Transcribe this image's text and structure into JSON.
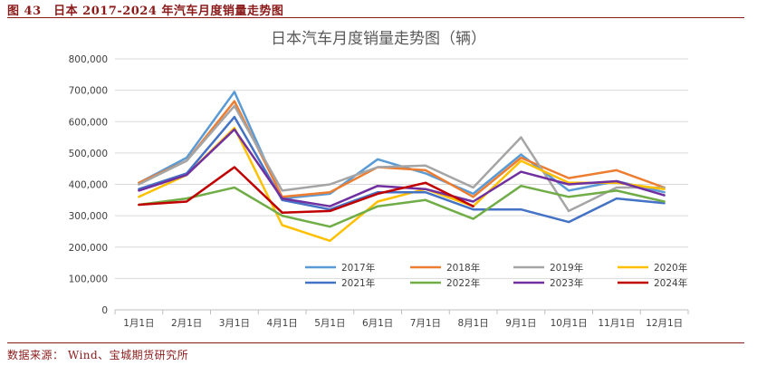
{
  "figure": {
    "label": "图 43　日本 2017-2024 年汽车月度销量走势图",
    "source": "数据来源：  Wind、宝城期货研究所"
  },
  "chart_data": {
    "type": "line",
    "title": "日本汽车月度销量走势图（辆）",
    "xlabel": "",
    "ylabel": "",
    "ylim": [
      0,
      800000
    ],
    "yticks": [
      0,
      100000,
      200000,
      300000,
      400000,
      500000,
      600000,
      700000,
      800000
    ],
    "ytick_labels": [
      "0",
      "100,000",
      "200,000",
      "300,000",
      "400,000",
      "500,000",
      "600,000",
      "700,000",
      "800,000"
    ],
    "grid": true,
    "legend_position": "bottom-right inside",
    "categories": [
      "1月1日",
      "2月1日",
      "3月1日",
      "4月1日",
      "5月1日",
      "6月1日",
      "7月1日",
      "8月1日",
      "9月1日",
      "10月1日",
      "11月1日",
      "12月1日"
    ],
    "series": [
      {
        "name": "2017年",
        "color": "#5b9bd5",
        "values": [
          405000,
          485000,
          695000,
          355000,
          370000,
          480000,
          435000,
          370000,
          495000,
          380000,
          410000,
          375000
        ]
      },
      {
        "name": "2018年",
        "color": "#ed7d31",
        "values": [
          405000,
          475000,
          665000,
          360000,
          375000,
          455000,
          445000,
          360000,
          485000,
          420000,
          445000,
          390000
        ]
      },
      {
        "name": "2019年",
        "color": "#a5a5a5",
        "values": [
          400000,
          475000,
          650000,
          380000,
          400000,
          455000,
          460000,
          390000,
          550000,
          315000,
          390000,
          390000
        ]
      },
      {
        "name": "2020年",
        "color": "#ffc000",
        "values": [
          360000,
          430000,
          580000,
          270000,
          220000,
          345000,
          385000,
          330000,
          475000,
          405000,
          405000,
          385000
        ]
      },
      {
        "name": "2021年",
        "color": "#4472c4",
        "values": [
          385000,
          435000,
          615000,
          350000,
          320000,
          375000,
          375000,
          320000,
          320000,
          280000,
          355000,
          340000
        ]
      },
      {
        "name": "2022年",
        "color": "#70ad47",
        "values": [
          335000,
          355000,
          390000,
          300000,
          265000,
          330000,
          350000,
          290000,
          395000,
          360000,
          380000,
          345000
        ]
      },
      {
        "name": "2023年",
        "color": "#7030a0",
        "values": [
          380000,
          430000,
          575000,
          355000,
          330000,
          395000,
          385000,
          345000,
          440000,
          400000,
          410000,
          365000
        ]
      },
      {
        "name": "2024年",
        "color": "#c00000",
        "values": [
          335000,
          345000,
          455000,
          310000,
          315000,
          370000,
          405000,
          330000,
          null,
          null,
          null,
          null
        ]
      }
    ]
  }
}
